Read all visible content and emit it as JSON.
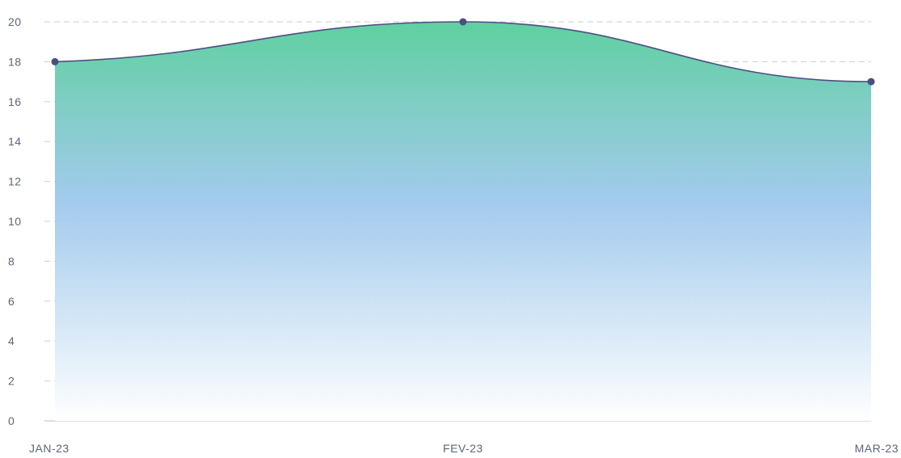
{
  "chart_data": {
    "type": "area",
    "categories": [
      "JAN-23",
      "FEV-23",
      "MAR-23"
    ],
    "series": [
      {
        "values": [
          18,
          20,
          17
        ]
      }
    ],
    "ylim": [
      0,
      20
    ],
    "yticks": [
      0,
      2,
      4,
      6,
      8,
      10,
      12,
      14,
      16,
      18,
      20
    ],
    "grid": true,
    "colors": {
      "line": "#4a4f80",
      "marker": "#4a4f80",
      "fill_top": "#5fd0a0",
      "fill_mid": "#9ec8ec",
      "fill_bottom": "#ffffff"
    }
  }
}
